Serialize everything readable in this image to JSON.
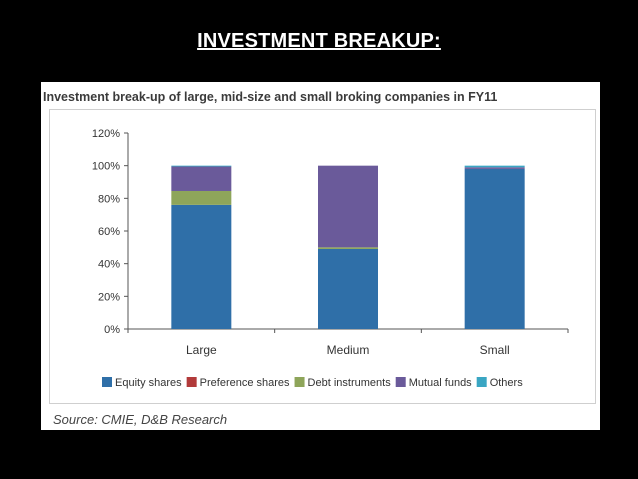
{
  "slide": {
    "title": "INVESTMENT BREAKUP:"
  },
  "source": "Source: CMIE, D&B Research",
  "colors": {
    "equity": "#2f6fa8",
    "preference": "#b23a3a",
    "debt": "#8ea55a",
    "mutual": "#6a5a9a",
    "others": "#3aa6c3"
  },
  "chart_data": {
    "type": "bar",
    "stacked": true,
    "title": "Investment break-up of large, mid-size and small broking companies in FY11",
    "categories": [
      "Large",
      "Medium",
      "Small"
    ],
    "ylim": [
      0,
      120
    ],
    "yticks": [
      "0%",
      "20%",
      "40%",
      "60%",
      "80%",
      "100%",
      "120%"
    ],
    "series": [
      {
        "name": "Equity shares",
        "color": "#2f6fa8",
        "values": [
          76,
          49,
          98
        ]
      },
      {
        "name": "Preference shares",
        "color": "#b23a3a",
        "values": [
          0,
          0,
          0
        ]
      },
      {
        "name": "Debt instruments",
        "color": "#8ea55a",
        "values": [
          8.5,
          1,
          0
        ]
      },
      {
        "name": "Mutual funds",
        "color": "#6a5a9a",
        "values": [
          15,
          50,
          1
        ]
      },
      {
        "name": "Others",
        "color": "#3aa6c3",
        "values": [
          0.5,
          0,
          1
        ]
      }
    ],
    "legend_position": "bottom"
  }
}
